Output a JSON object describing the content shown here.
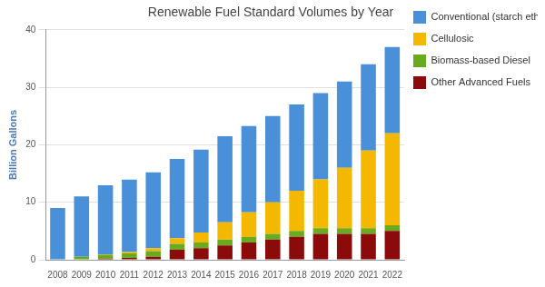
{
  "chart_data": {
    "type": "bar",
    "title": "Renewable Fuel Standard Volumes by Year",
    "y_label": "Billion Gallons",
    "categories": [
      "2008",
      "2009",
      "2010",
      "2011",
      "2012",
      "2013",
      "2014",
      "2015",
      "2016",
      "2017",
      "2018",
      "2019",
      "2020",
      "2021",
      "2022"
    ],
    "series": [
      {
        "name": "Conventional (starch ethanol)",
        "color": "#4a90d9",
        "values": [
          9,
          10.5,
          12,
          12.6,
          13.2,
          13.8,
          14.4,
          15,
          15,
          15,
          15,
          15,
          15,
          15,
          15
        ]
      },
      {
        "name": "Cellulosic",
        "color": "#f5b800",
        "values": [
          0,
          0,
          0.1,
          0.25,
          0.5,
          1,
          1.75,
          3,
          4.25,
          5.5,
          7,
          8.5,
          10.5,
          13.5,
          16
        ]
      },
      {
        "name": "Biomass-based Diesel",
        "color": "#6aaa1e",
        "values": [
          0,
          0.5,
          0.65,
          0.8,
          1,
          1,
          1,
          1,
          1,
          1,
          1,
          1,
          1,
          1,
          1
        ]
      },
      {
        "name": "Other Advanced Fuels",
        "color": "#8b0a0a",
        "values": [
          0,
          0,
          0.2,
          0.3,
          0.5,
          1.75,
          2,
          2.5,
          3,
          3.5,
          4,
          4.5,
          4.5,
          4.5,
          5
        ]
      }
    ],
    "stacked": true,
    "legend": "right",
    "grid": true,
    "ylim": [
      0,
      40
    ],
    "yticks": [
      0,
      10,
      20,
      30,
      40
    ]
  }
}
